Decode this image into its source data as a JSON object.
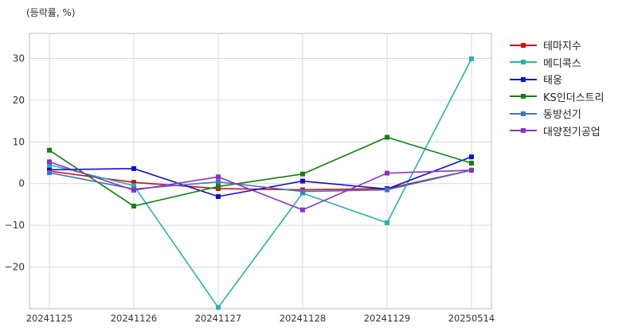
{
  "unit_label": "(등락률, %)",
  "chart_data": {
    "type": "line",
    "title": "",
    "xlabel": "",
    "ylabel": "(등락률, %)",
    "categories": [
      "20241125",
      "20241126",
      "20241127",
      "20241128",
      "20241129",
      "20250514"
    ],
    "ylim": [
      -30,
      36
    ],
    "yticks": [
      30,
      20,
      10,
      0,
      -10,
      -20
    ],
    "grid": true,
    "legend_position": "right",
    "series": [
      {
        "name": "테마지수",
        "color": "#cc1111",
        "values": [
          3.0,
          0.3,
          -1.2,
          -1.5,
          -1.2,
          3.2
        ]
      },
      {
        "name": "메디콕스",
        "color": "#2ab0ae",
        "values": [
          4.5,
          -0.5,
          -29.7,
          -2.3,
          -9.4,
          29.9
        ]
      },
      {
        "name": "태웅",
        "color": "#1010cc",
        "values": [
          3.3,
          3.6,
          -3.1,
          0.6,
          -1.3,
          6.4
        ]
      },
      {
        "name": "KS인더스트리",
        "color": "#118011",
        "values": [
          8.0,
          -5.4,
          -0.7,
          2.3,
          11.1,
          4.9
        ]
      },
      {
        "name": "동방선기",
        "color": "#4472c4",
        "values": [
          2.6,
          -1.3,
          0.4,
          -1.9,
          -1.5,
          3.2
        ]
      },
      {
        "name": "대양전기공업",
        "color": "#8833cc",
        "values": [
          5.2,
          -1.6,
          1.6,
          -6.3,
          2.5,
          3.2
        ]
      }
    ]
  }
}
